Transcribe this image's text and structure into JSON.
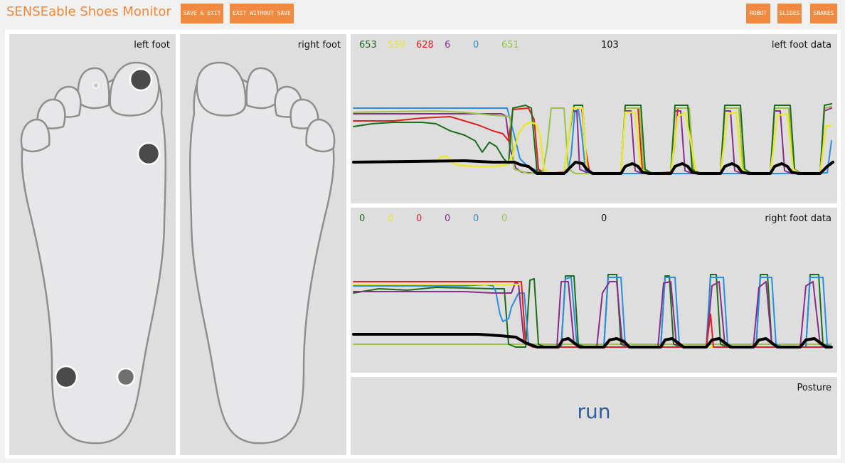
{
  "app": {
    "title": "SENSEable Shoes Monitor"
  },
  "toolbar": {
    "save_exit": "SAVE & EXIT",
    "exit_without_save": "EXIT WITHOUT SAVE",
    "robot": "ROBOT",
    "slides": "SLIDES",
    "snakes": "SNAKES"
  },
  "left_foot": {
    "label": "left foot",
    "sensors": [
      {
        "name": "big toe",
        "level": "high"
      },
      {
        "name": "second toe",
        "level": "low"
      },
      {
        "name": "outer midfoot",
        "level": "high"
      },
      {
        "name": "inner heel",
        "level": "high"
      },
      {
        "name": "outer heel",
        "level": "medium"
      }
    ]
  },
  "right_foot": {
    "label": "right foot"
  },
  "left_data": {
    "label": "left foot data",
    "readings": [
      {
        "value": "653",
        "color": "#1a6e1a"
      },
      {
        "value": "539",
        "color": "#e8e830"
      },
      {
        "value": "628",
        "color": "#e02020"
      },
      {
        "value": "6",
        "color": "#8b2c8b"
      },
      {
        "value": "0",
        "color": "#2a8ee0"
      },
      {
        "value": "651",
        "color": "#9bc34a"
      },
      {
        "value": "103",
        "color": "#111111"
      }
    ]
  },
  "right_data": {
    "label": "right foot data",
    "readings": [
      {
        "value": "0",
        "color": "#1a6e1a"
      },
      {
        "value": "0",
        "color": "#e8e830"
      },
      {
        "value": "0",
        "color": "#e02020"
      },
      {
        "value": "0",
        "color": "#8b2c8b"
      },
      {
        "value": "0",
        "color": "#2a8ee0"
      },
      {
        "value": "0",
        "color": "#9bc34a"
      },
      {
        "value": "0",
        "color": "#111111"
      }
    ]
  },
  "posture": {
    "label": "Posture",
    "value": "run"
  }
}
